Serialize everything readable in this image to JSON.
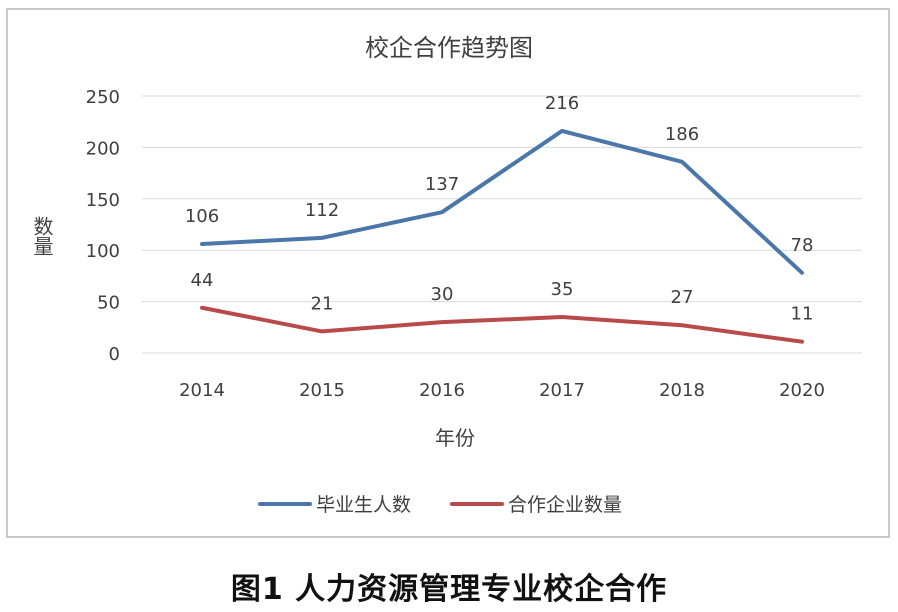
{
  "figure_caption": "图1  人力资源管理专业校企合作",
  "chart_data": {
    "type": "line",
    "title": "校企合作趋势图",
    "xlabel": "年份",
    "ylabel": "数量",
    "categories": [
      "2014",
      "2015",
      "2016",
      "2017",
      "2018",
      "2020"
    ],
    "ylim": [
      0,
      250
    ],
    "yticks": [
      0,
      50,
      100,
      150,
      200,
      250
    ],
    "grid": true,
    "legend_position": "bottom",
    "series": [
      {
        "name": "毕业生人数",
        "values": [
          106,
          112,
          137,
          216,
          186,
          78
        ],
        "color": "#4a76aa"
      },
      {
        "name": "合作企业数量",
        "values": [
          44,
          21,
          30,
          35,
          27,
          11
        ],
        "color": "#b84a4a"
      }
    ]
  }
}
